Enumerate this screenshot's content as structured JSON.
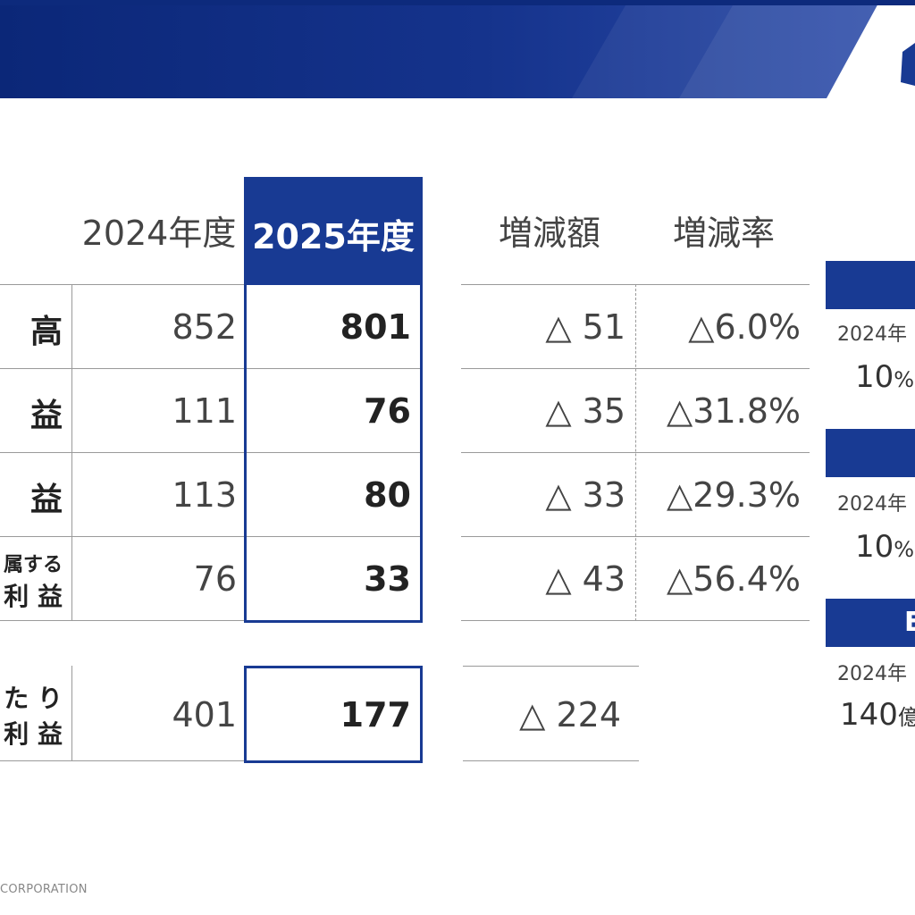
{
  "header": {
    "col_2024": "2024年度",
    "col_2025": "2025年度",
    "col_diff": "増減額",
    "col_rate": "増減率"
  },
  "rows": [
    {
      "label": "高",
      "v2024": "852",
      "v2025": "801",
      "diff": "△ 51",
      "rate": "△6.0%"
    },
    {
      "label": "益",
      "v2024": "111",
      "v2025": "76",
      "diff": "△ 35",
      "rate": "△31.8%"
    },
    {
      "label": "益",
      "v2024": "113",
      "v2025": "80",
      "diff": "△ 33",
      "rate": "△29.3%"
    },
    {
      "label_line1": "属する",
      "label_line2": "利 益",
      "v2024": "76",
      "v2025": "33",
      "diff": "△ 43",
      "rate": "△56.4%"
    }
  ],
  "eps_row": {
    "label_line1": "た り",
    "label_line2": "利 益",
    "v2024": "401",
    "v2025": "177",
    "diff": "△ 224"
  },
  "side": [
    {
      "bar": "",
      "small": "2024年",
      "big": "10",
      "unit": "%"
    },
    {
      "bar": "",
      "small": "2024年",
      "big": "10",
      "unit": "%"
    },
    {
      "bar": "E",
      "small": "2024年",
      "big": "140",
      "unit": "億"
    }
  ],
  "footer": "CORPORATION",
  "colors": {
    "primary": "#183a93",
    "banner_dark": "#0b2a7a"
  }
}
